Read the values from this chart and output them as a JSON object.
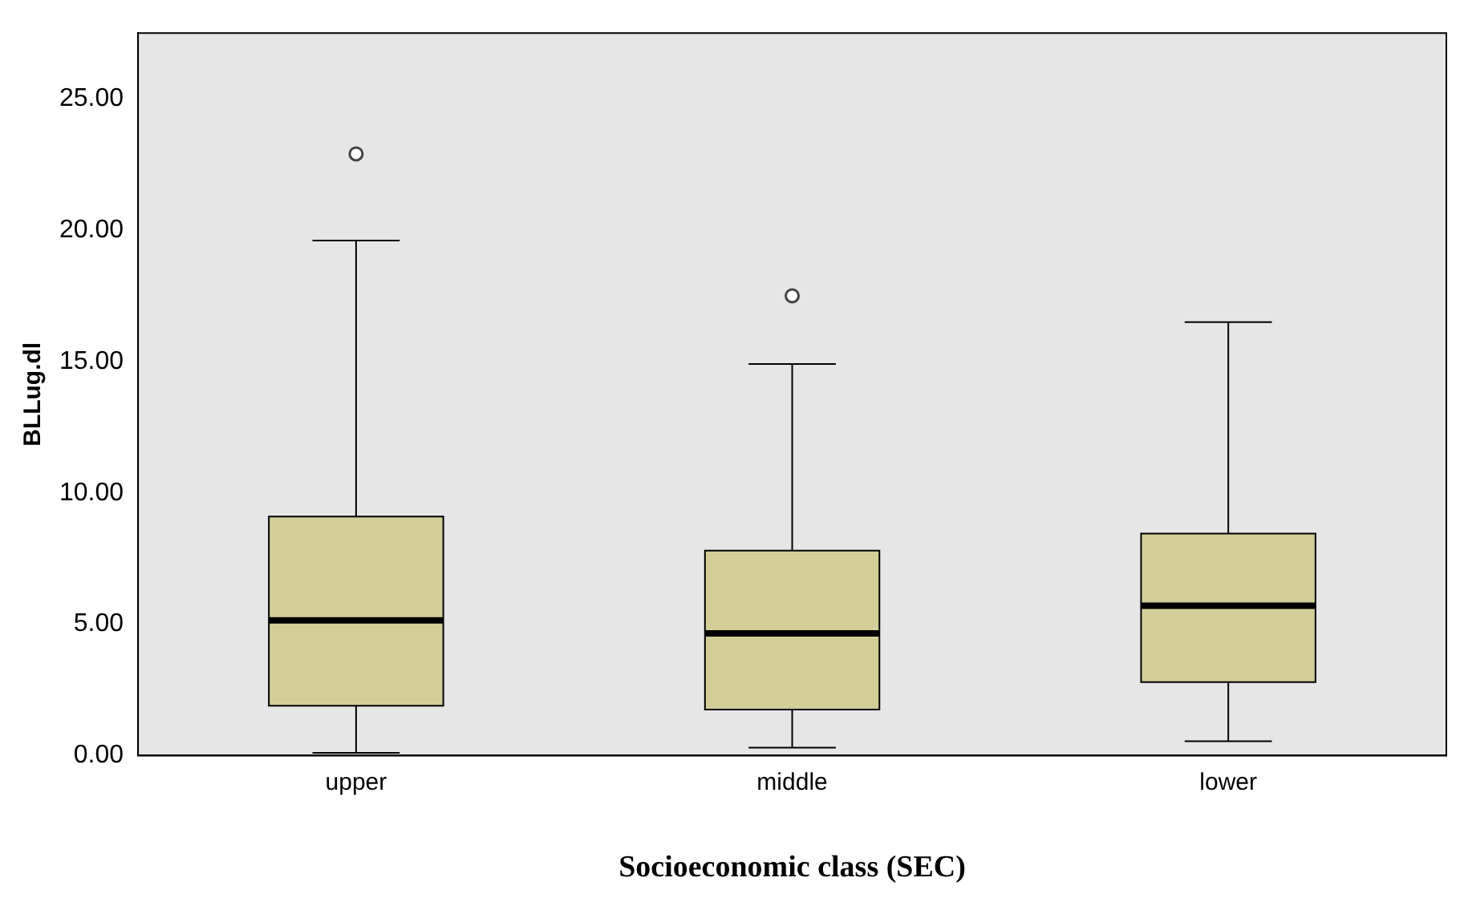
{
  "chart_data": {
    "type": "box",
    "xlabel": "Socioeconomic class (SEC)",
    "ylabel": "BLLug.dl",
    "categories": [
      "upper",
      "middle",
      "lower"
    ],
    "color": "#d3ce98",
    "boxes": [
      {
        "low": 0.1,
        "q1": 1.9,
        "median": 5.15,
        "q3": 9.1,
        "high": 19.6,
        "outliers": [
          22.9
        ]
      },
      {
        "low": 0.3,
        "q1": 1.75,
        "median": 4.65,
        "q3": 7.8,
        "high": 14.9,
        "outliers": [
          17.5
        ]
      },
      {
        "low": 0.55,
        "q1": 2.8,
        "median": 5.7,
        "q3": 8.45,
        "high": 16.5
      }
    ],
    "ylim": [
      0,
      27.5
    ],
    "yticks": [
      {
        "value": 0,
        "label": "0.00"
      },
      {
        "value": 5,
        "label": "5.00"
      },
      {
        "value": 10,
        "label": "10.00"
      },
      {
        "value": 15,
        "label": "15.00"
      },
      {
        "value": 20,
        "label": "20.00"
      },
      {
        "value": 25,
        "label": "25.00"
      }
    ],
    "grid": false,
    "legend": false
  }
}
